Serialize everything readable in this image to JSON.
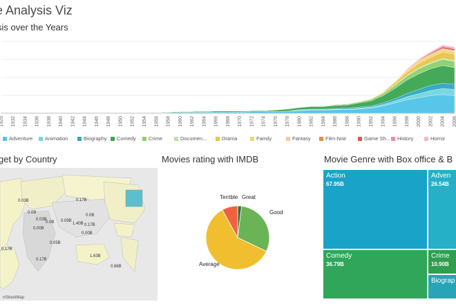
{
  "title": "ie Analysis Viz",
  "area_section": {
    "title": "sis over the Years"
  },
  "chart_data": [
    {
      "type": "area",
      "title": "sis over the Years",
      "x": [
        "1929",
        "1932",
        "1934",
        "1936",
        "1938",
        "1940",
        "1942",
        "1944",
        "1946",
        "1948",
        "1950",
        "1952",
        "1954",
        "1956",
        "1958",
        "1960",
        "1962",
        "1964",
        "1966",
        "1968",
        "1970",
        "1972",
        "1974",
        "1976",
        "1978",
        "1980",
        "1982",
        "1984",
        "1986",
        "1988",
        "1990",
        "1992",
        "1994",
        "1996",
        "1998",
        "2000",
        "2002",
        "2004",
        "2006"
      ],
      "series": [
        {
          "name": "Adventure",
          "color": "#4fc3e8",
          "values": [
            0.5,
            0.5,
            0.5,
            0.5,
            0.5,
            0.5,
            0.5,
            0.5,
            0.5,
            0.5,
            0.5,
            0.5,
            0.5,
            0.5,
            0.8,
            1,
            1,
            1,
            1.2,
            1.2,
            1.3,
            1.5,
            1.5,
            1.8,
            2,
            2.5,
            3,
            3,
            3.5,
            3.5,
            4,
            5,
            7,
            10,
            13,
            15,
            17,
            18,
            17
          ]
        },
        {
          "name": "Animation",
          "color": "#76d4e0",
          "values": [
            0,
            0,
            0,
            0,
            0,
            0,
            0,
            0,
            0,
            0,
            0,
            0,
            0,
            0,
            0,
            0,
            0,
            0,
            0,
            0,
            0,
            0,
            0,
            0,
            0,
            0.5,
            0.5,
            0.5,
            0.5,
            0.5,
            1,
            1,
            1.5,
            2,
            3,
            4,
            5,
            6,
            6
          ]
        },
        {
          "name": "Biography",
          "color": "#2ea7c6",
          "values": [
            0,
            0,
            0,
            0,
            0,
            0,
            0,
            0,
            0,
            0,
            0,
            0,
            0,
            0,
            0,
            0,
            0,
            0,
            0,
            0,
            0,
            0,
            0,
            0,
            0,
            0.5,
            0.5,
            0.5,
            0.5,
            1,
            1,
            1,
            1.5,
            2,
            3,
            4,
            5,
            5,
            5
          ]
        },
        {
          "name": "Comedy",
          "color": "#3aa651",
          "values": [
            0.5,
            0.5,
            0.5,
            0.5,
            0.5,
            0.5,
            0.5,
            0.5,
            0.5,
            0.5,
            0.5,
            0.5,
            0.5,
            0.5,
            0.5,
            0.8,
            0.8,
            1,
            1,
            1,
            1,
            1,
            1,
            1.5,
            2,
            2,
            2.5,
            2.5,
            3,
            3,
            4,
            5,
            7,
            10,
            13,
            15,
            16,
            17,
            16
          ]
        },
        {
          "name": "Crime",
          "color": "#8cd06d",
          "values": [
            0,
            0,
            0,
            0,
            0,
            0,
            0,
            0,
            0,
            0,
            0,
            0,
            0,
            0,
            0,
            0,
            0,
            0,
            0,
            0,
            0,
            0,
            0,
            0,
            0.5,
            0.5,
            0.5,
            0.5,
            1,
            1,
            1,
            1.5,
            2,
            3,
            4,
            5,
            5,
            6,
            6
          ]
        },
        {
          "name": "Documen...",
          "color": "#b7e2a8",
          "values": [
            0,
            0,
            0,
            0,
            0,
            0,
            0,
            0,
            0,
            0,
            0,
            0,
            0,
            0,
            0,
            0,
            0,
            0,
            0,
            0,
            0,
            0,
            0,
            0,
            0,
            0,
            0,
            0,
            0,
            0,
            0,
            0,
            0,
            0.5,
            0.5,
            1,
            1,
            1,
            1
          ]
        },
        {
          "name": "Drama",
          "color": "#e8c547",
          "values": [
            0,
            0,
            0,
            0,
            0,
            0,
            0,
            0,
            0,
            0,
            0,
            0,
            0,
            0,
            0,
            0,
            0,
            0,
            0,
            0,
            0,
            0,
            0,
            0,
            0,
            0,
            0,
            0,
            0,
            0,
            0.5,
            0.5,
            1,
            2,
            3,
            4,
            5,
            6,
            6
          ]
        },
        {
          "name": "Family",
          "color": "#f2d46a",
          "values": [
            0,
            0,
            0,
            0,
            0,
            0,
            0,
            0,
            0,
            0,
            0,
            0,
            0,
            0,
            0,
            0,
            0,
            0,
            0,
            0,
            0,
            0,
            0,
            0,
            0,
            0,
            0,
            0,
            0,
            0,
            0,
            0,
            0.5,
            1,
            1.5,
            2,
            2,
            2.5,
            2.5
          ]
        },
        {
          "name": "Fantasy",
          "color": "#f4c89a",
          "values": [
            0,
            0,
            0,
            0,
            0,
            0,
            0,
            0,
            0,
            0,
            0,
            0,
            0,
            0,
            0,
            0,
            0,
            0,
            0,
            0,
            0,
            0,
            0,
            0,
            0,
            0,
            0,
            0,
            0,
            0,
            0,
            0,
            0,
            0.5,
            0.5,
            1,
            1,
            1,
            1
          ]
        },
        {
          "name": "Film-Noir",
          "color": "#e98a3c",
          "values": [
            0,
            0,
            0,
            0,
            0,
            0,
            0,
            0,
            0,
            0,
            0,
            0,
            0,
            0,
            0,
            0,
            0,
            0,
            0,
            0,
            0,
            0,
            0,
            0,
            0,
            0,
            0,
            0,
            0,
            0,
            0,
            0,
            0,
            0,
            0,
            0,
            0,
            0,
            0
          ]
        },
        {
          "name": "Game Sh...",
          "color": "#e05555",
          "values": [
            0,
            0,
            0,
            0,
            0,
            0,
            0,
            0,
            0,
            0,
            0,
            0,
            0,
            0,
            0,
            0,
            0,
            0,
            0,
            0,
            0,
            0,
            0,
            0,
            0,
            0,
            0,
            0,
            0,
            0,
            0,
            0,
            0,
            0,
            0.5,
            0.5,
            1,
            1.5,
            1.5
          ]
        },
        {
          "name": "History",
          "color": "#f08a9a",
          "values": [
            0,
            0,
            0,
            0,
            0,
            0,
            0,
            0,
            0,
            0,
            0,
            0,
            0,
            0,
            0,
            0,
            0,
            0,
            0,
            0,
            0,
            0,
            0,
            0,
            0,
            0,
            0,
            0,
            0,
            0,
            0,
            0,
            0,
            0,
            0.5,
            0.5,
            1,
            1,
            1
          ]
        },
        {
          "name": "Horror",
          "color": "#f6b8c4",
          "values": [
            0,
            0,
            0,
            0,
            0,
            0,
            0,
            0,
            0,
            0,
            0,
            0,
            0,
            0,
            0,
            0,
            0,
            0,
            0,
            0,
            0,
            0,
            0,
            0,
            0,
            0,
            0,
            0,
            0,
            0,
            0,
            0,
            0,
            0,
            0,
            0.5,
            0.5,
            1,
            1
          ]
        }
      ],
      "grid": true
    },
    {
      "type": "pie",
      "title": "Movies rating with IMDB",
      "slices": [
        {
          "label": "Good",
          "value": 30,
          "color": "#6ab356"
        },
        {
          "label": "Average",
          "value": 60,
          "color": "#f0be2e"
        },
        {
          "label": "Terrible",
          "value": 8,
          "color": "#f0623e"
        },
        {
          "label": "Great",
          "value": 2,
          "color": "#3c6b3a"
        }
      ]
    },
    {
      "type": "table",
      "title": "Movie Genre with Box office & B",
      "cells": [
        {
          "name": "Action",
          "value": "67.95B",
          "color": "#1aa3c9"
        },
        {
          "name": "Adven",
          "value": "26.54B",
          "color": "#25b0c8"
        },
        {
          "name": "Comedy",
          "value": "36.79B",
          "color": "#2fa65a"
        },
        {
          "name": "Crime",
          "value": "10.90B",
          "color": "#2f9e4f"
        },
        {
          "name": "Biograp",
          "value": "",
          "color": "#27a4b5"
        }
      ]
    }
  ],
  "map_section": {
    "title": "get by Country",
    "attribution": "nStreetMap",
    "labels": [
      "0.03B",
      "0.17B",
      "0.0B",
      "0.03B",
      "0.09B",
      "0.0B",
      "1.40B",
      "0.0B",
      "0.17B",
      "0.00B",
      "0.00B",
      "0.17B",
      "0.05B",
      "0.17B",
      "1.63B",
      "0.86B"
    ]
  }
}
